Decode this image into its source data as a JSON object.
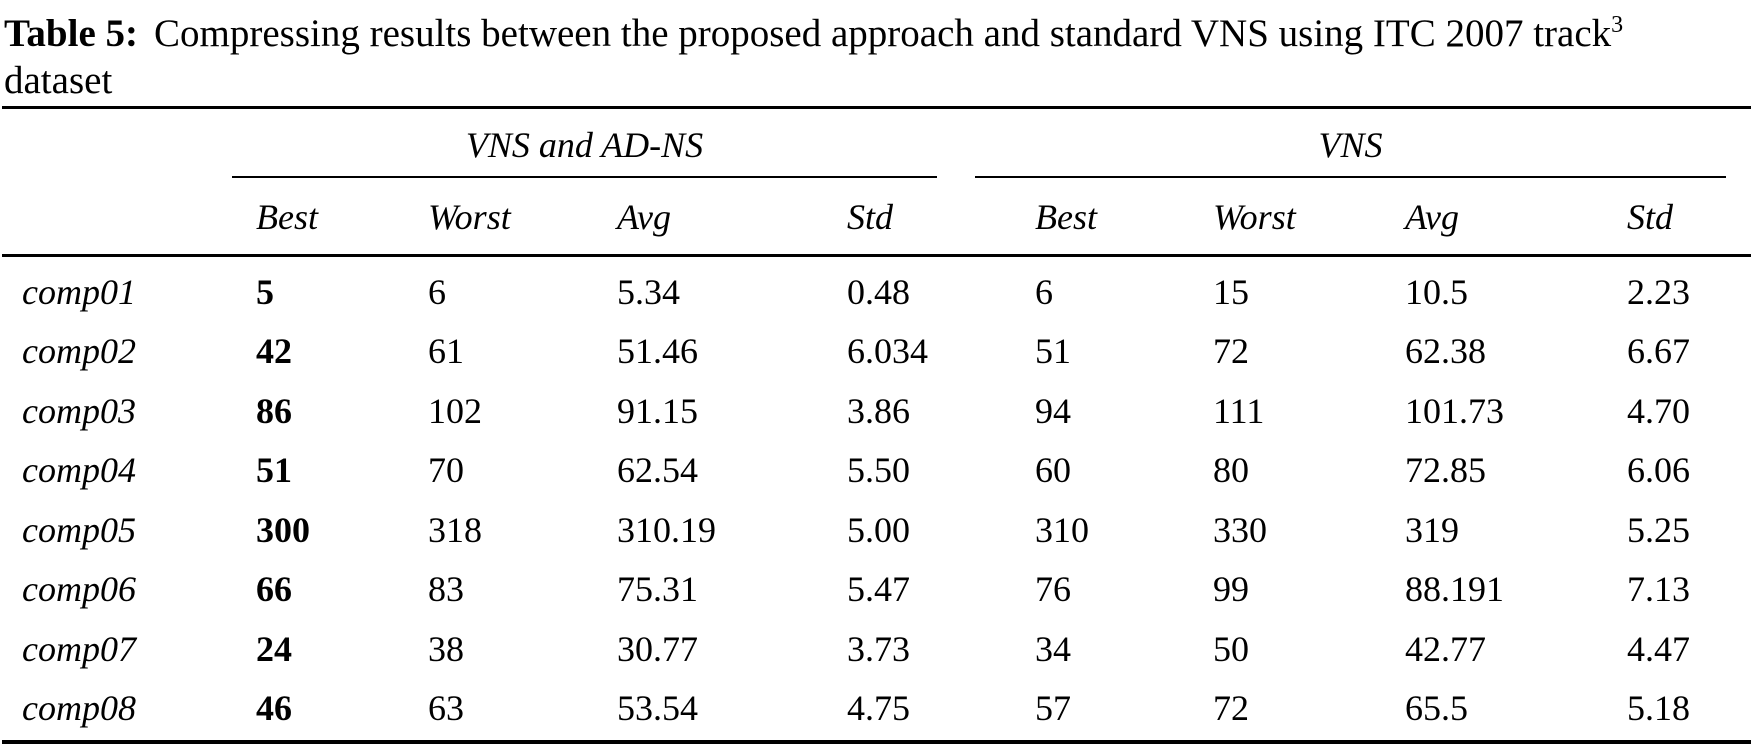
{
  "caption": {
    "label": "Table 5:",
    "line1": "Compressing results between the proposed approach and standard VNS using ITC 2007 track",
    "footnote_marker": "3",
    "line2": "dataset"
  },
  "table": {
    "groups": [
      {
        "label": "VNS and AD-NS",
        "columns": [
          "Best",
          "Worst",
          "Avg",
          "Std"
        ]
      },
      {
        "label": "VNS",
        "columns": [
          "Best",
          "Worst",
          "Avg",
          "Std"
        ]
      }
    ],
    "rows": [
      {
        "label": "comp01",
        "cells": [
          "5",
          "6",
          "5.34",
          "0.48",
          "6",
          "15",
          "10.5",
          "2.23"
        ]
      },
      {
        "label": "comp02",
        "cells": [
          "42",
          "61",
          "51.46",
          "6.034",
          "51",
          "72",
          "62.38",
          "6.67"
        ]
      },
      {
        "label": "comp03",
        "cells": [
          "86",
          "102",
          "91.15",
          "3.86",
          "94",
          "111",
          "101.73",
          "4.70"
        ]
      },
      {
        "label": "comp04",
        "cells": [
          "51",
          "70",
          "62.54",
          "5.50",
          "60",
          "80",
          "72.85",
          "6.06"
        ]
      },
      {
        "label": "comp05",
        "cells": [
          "300",
          "318",
          "310.19",
          "5.00",
          "310",
          "330",
          "319",
          "5.25"
        ]
      },
      {
        "label": "comp06",
        "cells": [
          "66",
          "83",
          "75.31",
          "5.47",
          "76",
          "99",
          "88.191",
          "7.13"
        ]
      },
      {
        "label": "comp07",
        "cells": [
          "24",
          "38",
          "30.77",
          "3.73",
          "34",
          "50",
          "42.77",
          "4.47"
        ]
      },
      {
        "label": "comp08",
        "cells": [
          "46",
          "63",
          "53.54",
          "4.75",
          "57",
          "72",
          "65.5",
          "5.18"
        ]
      }
    ],
    "colors": {
      "text": "#000000",
      "background": "#ffffff",
      "rule": "#000000"
    }
  }
}
